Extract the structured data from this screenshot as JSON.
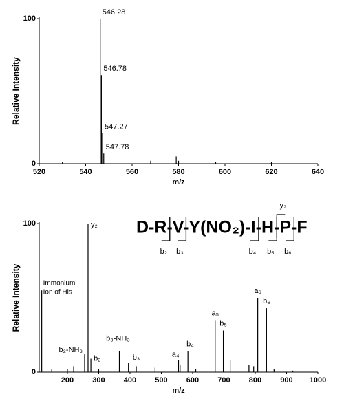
{
  "chart_data": [
    {
      "type": "spectrum",
      "y_label": "Relative Intensity",
      "x_label": "m/z",
      "xlim": [
        520,
        640
      ],
      "xticks": [
        520,
        540,
        560,
        580,
        600,
        620,
        640
      ],
      "ylim": [
        0,
        100
      ],
      "yticks": [
        0,
        100
      ],
      "color": "#000000",
      "x": [
        530,
        546.28,
        546.78,
        547.27,
        547.78,
        568,
        579,
        580,
        596,
        620
      ],
      "values": [
        1,
        100,
        61,
        21,
        7,
        2,
        5,
        2,
        1,
        1
      ],
      "peak_labels": [
        null,
        "546.28",
        "546.78",
        "547.27",
        "547.78",
        null,
        null,
        null,
        null,
        null
      ]
    },
    {
      "type": "spectrum",
      "y_label": "Relative Intensity",
      "x_label": "m/z",
      "xlim": [
        110,
        1000
      ],
      "xticks": [
        200,
        300,
        400,
        500,
        600,
        700,
        800,
        900,
        1000
      ],
      "ylim": [
        0,
        100
      ],
      "yticks": [
        0,
        100
      ],
      "color": "#000000",
      "x": [
        118,
        150,
        200,
        220,
        255,
        266,
        275,
        300,
        366,
        395,
        420,
        480,
        555,
        560,
        585,
        610,
        672,
        698,
        720,
        780,
        795,
        808,
        836,
        860,
        920
      ],
      "values": [
        55,
        2,
        2,
        4,
        12,
        100,
        9,
        2,
        14,
        6,
        4,
        3,
        8,
        5,
        14,
        2,
        35,
        28,
        8,
        5,
        4,
        50,
        43,
        2,
        1
      ],
      "peak_labels": [
        [
          "Immonium",
          "Ion of His"
        ],
        null,
        null,
        null,
        "b₂-NH₃",
        "y₂",
        "b₂",
        null,
        "b₃-NH₃",
        "b₃",
        null,
        null,
        "a₄",
        null,
        "b₄",
        null,
        "a₅",
        "b₅",
        null,
        null,
        null,
        "a₆",
        "b₆",
        null,
        null
      ],
      "sequence": [
        "D-",
        "R-",
        "V-",
        "Y(NO₂)-",
        "I-",
        "H-",
        "P-",
        "F"
      ],
      "b_ions": [
        "b₂",
        "b₃",
        "b₄",
        "b₅",
        "b₆"
      ],
      "y_ions": [
        "y₂"
      ]
    }
  ]
}
